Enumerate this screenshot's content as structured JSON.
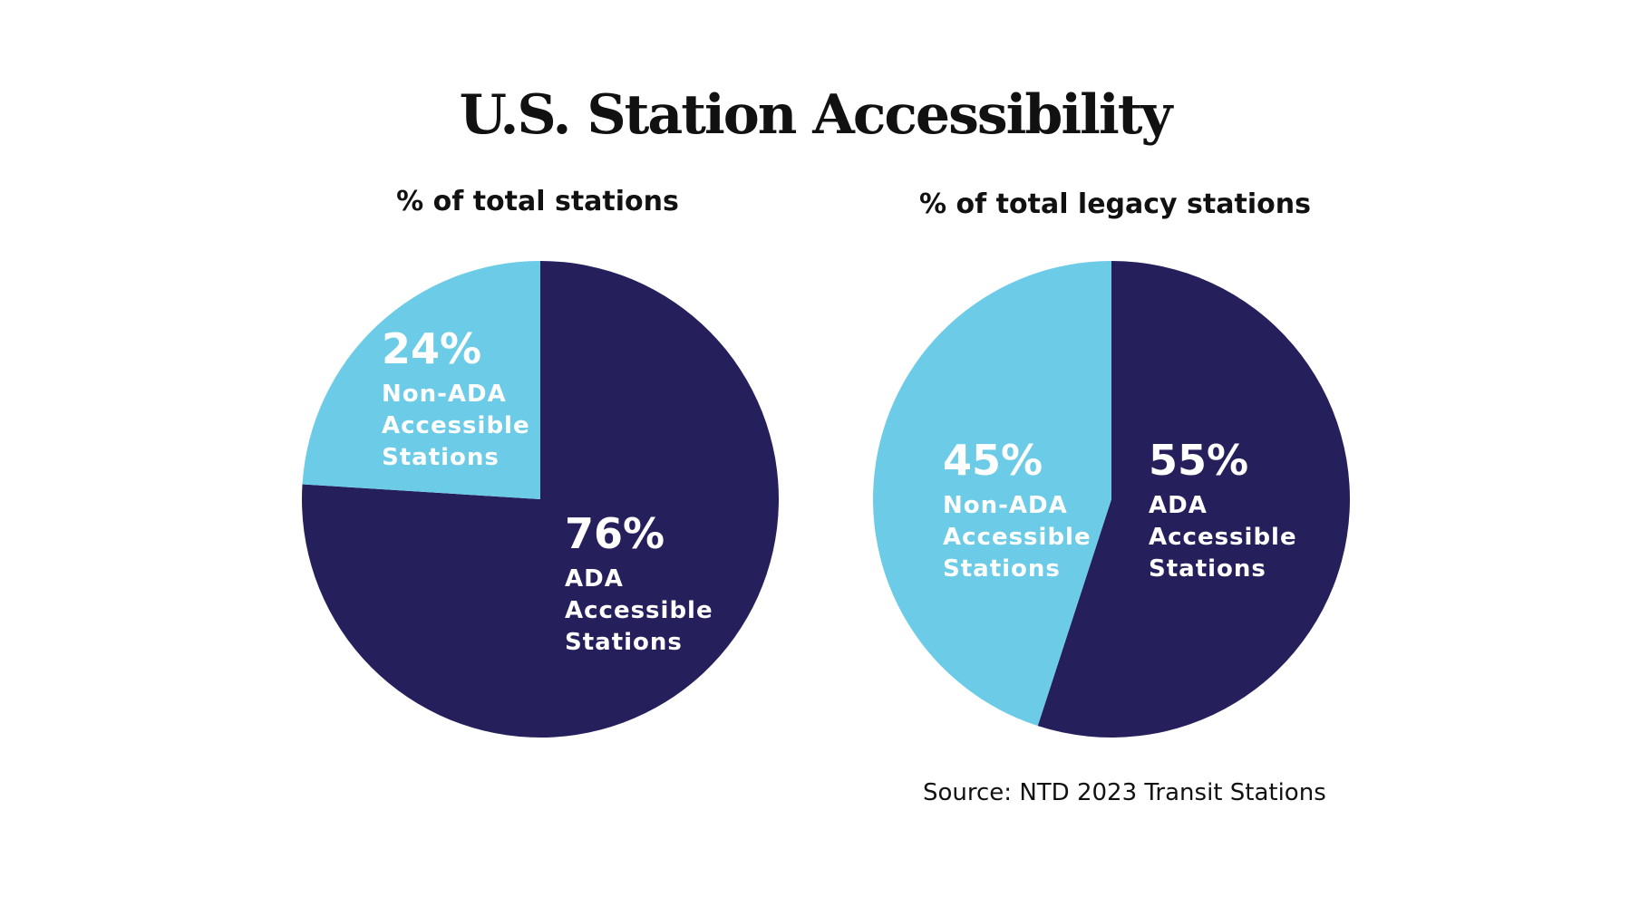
{
  "title": "U.S. Station Accessibility",
  "source": "Source: NTD 2023 Transit Stations",
  "colors": {
    "ada": "#25205c",
    "non_ada": "#6ccbe7",
    "text": "#111111"
  },
  "chart_data": [
    {
      "type": "pie",
      "title": "% of total stations",
      "slices": [
        {
          "value": 76,
          "pct_label": "76%",
          "lines": [
            "ADA",
            "Accessible",
            "Stations"
          ],
          "color": "#25205c"
        },
        {
          "value": 24,
          "pct_label": "24%",
          "lines": [
            "Non-ADA",
            "Accessible",
            "Stations"
          ],
          "color": "#6ccbe7"
        }
      ]
    },
    {
      "type": "pie",
      "title": "% of total legacy stations",
      "slices": [
        {
          "value": 55,
          "pct_label": "55%",
          "lines": [
            "ADA",
            "Accessible",
            "Stations"
          ],
          "color": "#25205c"
        },
        {
          "value": 45,
          "pct_label": "45%",
          "lines": [
            "Non-ADA",
            "Accessible",
            "Stations"
          ],
          "color": "#6ccbe7"
        }
      ]
    }
  ]
}
